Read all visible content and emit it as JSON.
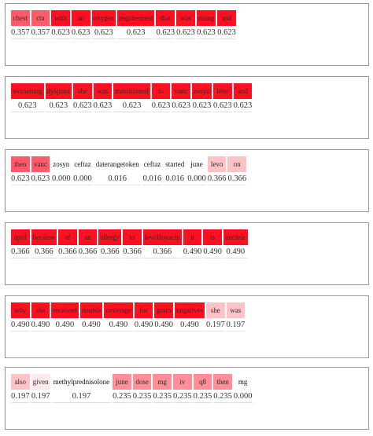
{
  "colors": {
    "high": "#ff0f1f",
    "mid_high": "#ff5a6a",
    "mid": "#ff8e98",
    "low": "#ffc2c7",
    "lowest": "#ffe9ea",
    "none": "#ffffff"
  },
  "rows": [
    {
      "tokens": [
        {
          "w": "chest",
          "v": "0.357",
          "c": "mid_high"
        },
        {
          "w": "cta",
          "v": "0.357",
          "c": "mid_high"
        },
        {
          "w": "with",
          "v": "0.623",
          "c": "high"
        },
        {
          "w": "an",
          "v": "0.623",
          "c": "high"
        },
        {
          "w": "oxygen",
          "v": "0.623",
          "c": "high"
        },
        {
          "w": "requirement",
          "v": "0.623",
          "c": "high"
        },
        {
          "w": "that",
          "v": "0.623",
          "c": "high"
        },
        {
          "w": "was",
          "v": "0.623",
          "c": "high"
        },
        {
          "w": "rising",
          "v": "0.623",
          "c": "high"
        },
        {
          "w": "and",
          "v": "0.623",
          "c": "high"
        }
      ]
    },
    {
      "tokens": [
        {
          "w": "worsening",
          "v": "0.623",
          "c": "high"
        },
        {
          "w": "dyspnea",
          "v": "0.623",
          "c": "high"
        },
        {
          "w": "she",
          "v": "0.623",
          "c": "high"
        },
        {
          "w": "was",
          "v": "0.623",
          "c": "high"
        },
        {
          "w": "transitioned",
          "v": "0.623",
          "c": "high"
        },
        {
          "w": "to",
          "v": "0.623",
          "c": "high"
        },
        {
          "w": "vanc",
          "v": "0.623",
          "c": "high"
        },
        {
          "w": "zosyn",
          "v": "0.623",
          "c": "high"
        },
        {
          "w": "levo",
          "v": "0.623",
          "c": "high"
        },
        {
          "w": "and",
          "v": "0.623",
          "c": "high"
        }
      ]
    },
    {
      "tokens": [
        {
          "w": "then",
          "v": "0.623",
          "c": "mid_high"
        },
        {
          "w": "vanc",
          "v": "0.623",
          "c": "mid_high"
        },
        {
          "w": "zosyn",
          "v": "0.000",
          "c": "none"
        },
        {
          "w": "ceftaz",
          "v": "0.000",
          "c": "none"
        },
        {
          "w": "daterangetoken",
          "v": "0.016",
          "c": "none"
        },
        {
          "w": "ceftaz",
          "v": "0.016",
          "c": "none"
        },
        {
          "w": "started",
          "v": "0.016",
          "c": "none"
        },
        {
          "w": "june",
          "v": "0.000",
          "c": "none"
        },
        {
          "w": "levo",
          "v": "0.366",
          "c": "low"
        },
        {
          "w": "on",
          "v": "0.366",
          "c": "low"
        }
      ]
    },
    {
      "tokens": [
        {
          "w": "april",
          "v": "0.366",
          "c": "high"
        },
        {
          "w": "because",
          "v": "0.366",
          "c": "high"
        },
        {
          "w": "of",
          "v": "0.366",
          "c": "high"
        },
        {
          "w": "an",
          "v": "0.366",
          "c": "high"
        },
        {
          "w": "allergy",
          "v": "0.366",
          "c": "high"
        },
        {
          "w": "to",
          "v": "0.366",
          "c": "high"
        },
        {
          "w": "levofloxacin",
          "v": "0.366",
          "c": "high"
        },
        {
          "w": "it",
          "v": "0.490",
          "c": "high"
        },
        {
          "w": "is",
          "v": "0.490",
          "c": "high"
        },
        {
          "w": "unclear",
          "v": "0.490",
          "c": "high"
        }
      ]
    },
    {
      "tokens": [
        {
          "w": "why",
          "v": "0.490",
          "c": "high"
        },
        {
          "w": "she",
          "v": "0.490",
          "c": "high"
        },
        {
          "w": "received",
          "v": "0.490",
          "c": "high"
        },
        {
          "w": "double",
          "v": "0.490",
          "c": "high"
        },
        {
          "w": "coverage",
          "v": "0.490",
          "c": "high"
        },
        {
          "w": "for",
          "v": "0.490",
          "c": "high"
        },
        {
          "w": "gram",
          "v": "0.490",
          "c": "high"
        },
        {
          "w": "negatives",
          "v": "0.490",
          "c": "high"
        },
        {
          "w": "she",
          "v": "0.197",
          "c": "low"
        },
        {
          "w": "was",
          "v": "0.197",
          "c": "low"
        }
      ]
    },
    {
      "tokens": [
        {
          "w": "also",
          "v": "0.197",
          "c": "low"
        },
        {
          "w": "given",
          "v": "0.197",
          "c": "lowest"
        },
        {
          "w": "methylprednisolone",
          "v": "0.197",
          "c": "none"
        },
        {
          "w": "june",
          "v": "0.235",
          "c": "mid"
        },
        {
          "w": "dose",
          "v": "0.235",
          "c": "mid"
        },
        {
          "w": "mg",
          "v": "0.235",
          "c": "mid"
        },
        {
          "w": "iv",
          "v": "0.235",
          "c": "mid"
        },
        {
          "w": "q8",
          "v": "0.235",
          "c": "mid"
        },
        {
          "w": "then",
          "v": "0.235",
          "c": "mid"
        },
        {
          "w": "mg",
          "v": "0.000",
          "c": "none"
        }
      ]
    }
  ]
}
